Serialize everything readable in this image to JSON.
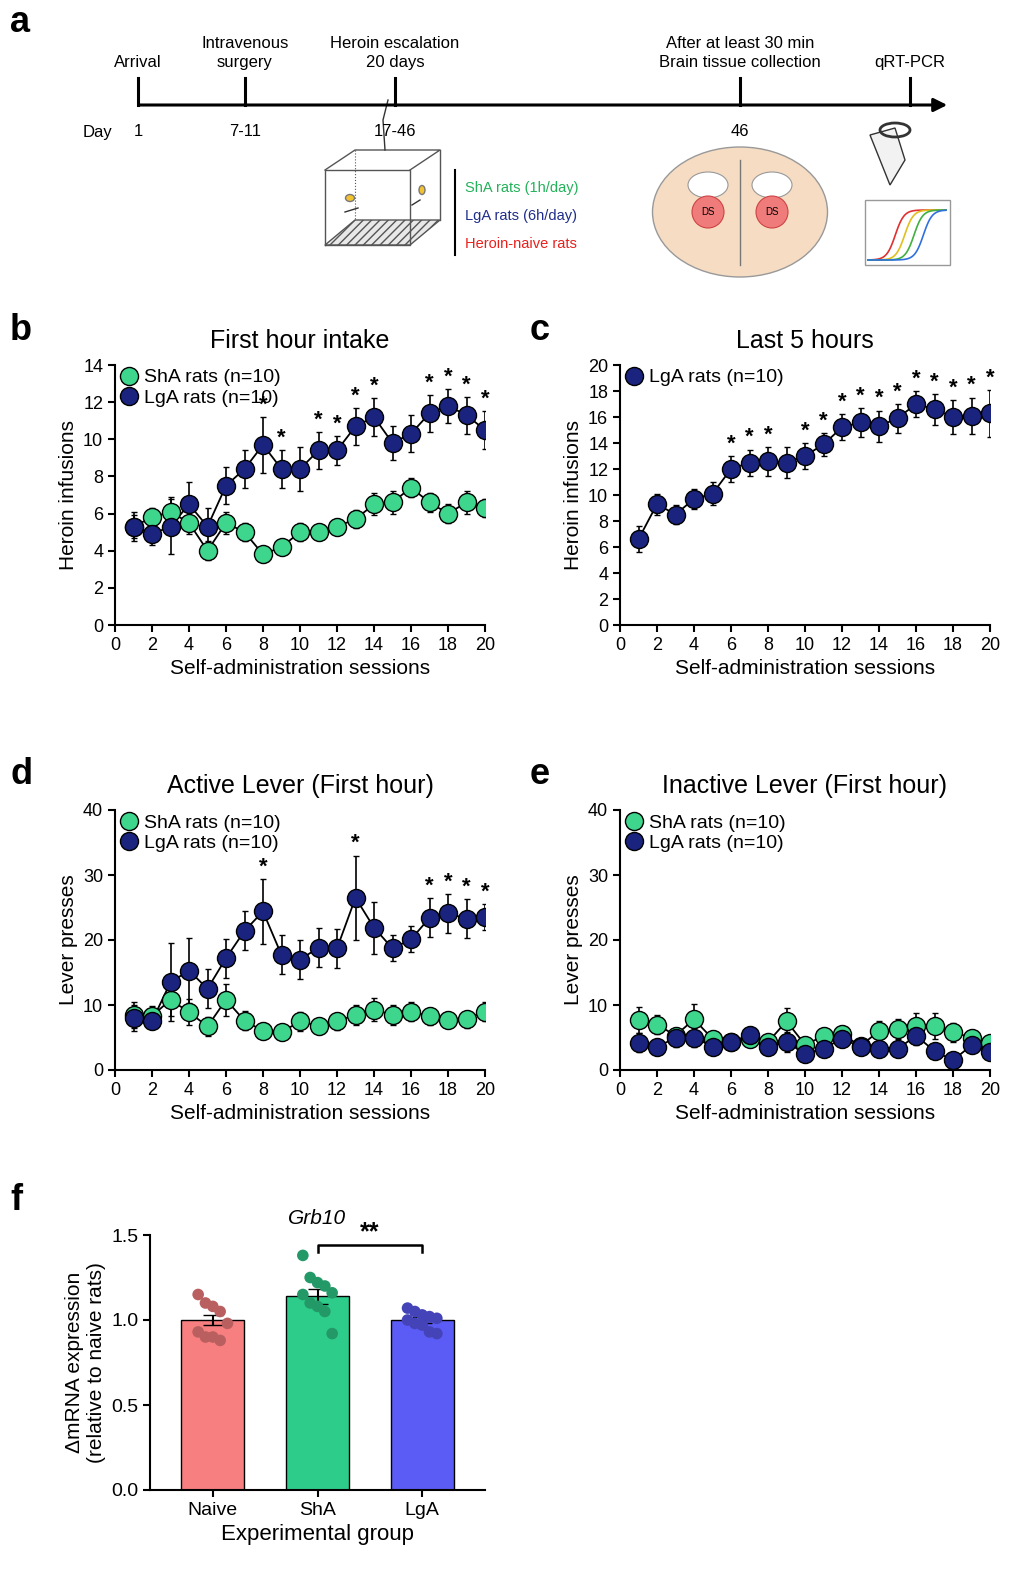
{
  "timeline": {
    "panel_label": "a",
    "day_label": "Day",
    "events": [
      {
        "label": "Arrival",
        "day": "1"
      },
      {
        "label": "Intravenous\nsurgery",
        "day": "7-11"
      },
      {
        "label": "Heroin escalation\n20 days",
        "day": "17-46"
      },
      {
        "label": "After at least 30 min\nBrain tissue collection",
        "day": "46"
      },
      {
        "label": "qRT-PCR"
      }
    ],
    "groups": [
      {
        "name": "ShA rats (1h/day)",
        "color": "#22b25a"
      },
      {
        "name": "LgA rats (6h/day)",
        "color": "#1f2d8a"
      },
      {
        "name": "Heroin-naive rats",
        "color": "#e8201c"
      }
    ],
    "region_label": "DS"
  },
  "chart_data": [
    {
      "type": "line",
      "panel_label": "b",
      "title": "First hour intake",
      "x_label": "Self-administration sessions",
      "y_label": "Heroin infusions",
      "x": [
        1,
        2,
        3,
        4,
        5,
        6,
        7,
        8,
        9,
        10,
        11,
        12,
        13,
        14,
        15,
        16,
        17,
        18,
        19,
        20
      ],
      "xlim": [
        0,
        20
      ],
      "xticks": [
        0,
        2,
        4,
        6,
        8,
        10,
        12,
        14,
        16,
        18,
        20
      ],
      "ylim": [
        0,
        14
      ],
      "yticks": [
        0,
        2,
        4,
        6,
        8,
        10,
        12,
        14
      ],
      "legend": "upper left",
      "marker": "o",
      "line_style": "solid",
      "series": [
        {
          "name": "ShA rats (n=10)",
          "color": "#3dd68c",
          "values": [
            5.3,
            5.8,
            6.1,
            5.5,
            4.0,
            5.5,
            5.0,
            3.8,
            4.2,
            5.0,
            5.0,
            5.3,
            5.7,
            6.5,
            6.6,
            7.4,
            6.6,
            6.0,
            6.6,
            6.3
          ],
          "errors": [
            0.6,
            0.5,
            0.8,
            0.6,
            0.5,
            0.6,
            0.5,
            0.4,
            0.4,
            0.5,
            0.4,
            0.4,
            0.5,
            0.6,
            0.6,
            0.5,
            0.5,
            0.5,
            0.6,
            0.5
          ]
        },
        {
          "name": "LgA rats (n=10)",
          "color": "#1a237e",
          "values": [
            5.3,
            4.9,
            5.3,
            6.5,
            5.3,
            7.5,
            8.4,
            9.7,
            8.4,
            8.4,
            9.4,
            9.4,
            10.7,
            11.2,
            9.8,
            10.3,
            11.4,
            11.8,
            11.3,
            10.5
          ],
          "errors": [
            0.8,
            0.6,
            1.5,
            1.2,
            1.0,
            1.0,
            1.0,
            1.5,
            1.0,
            1.2,
            1.0,
            0.8,
            1.0,
            1.0,
            0.9,
            1.0,
            1.0,
            0.9,
            1.0,
            1.0
          ],
          "annotations": [
            {
              "x": 8,
              "text": "*"
            },
            {
              "x": 9,
              "text": "*"
            },
            {
              "x": 11,
              "text": "*"
            },
            {
              "x": 12,
              "text": "*"
            },
            {
              "x": 13,
              "text": "*"
            },
            {
              "x": 14,
              "text": "*"
            },
            {
              "x": 17,
              "text": "*"
            },
            {
              "x": 18,
              "text": "*"
            },
            {
              "x": 19,
              "text": "*"
            },
            {
              "x": 20,
              "text": "*"
            }
          ]
        }
      ]
    },
    {
      "type": "line",
      "panel_label": "c",
      "title": "Last 5 hours",
      "x_label": "Self-administration sessions",
      "y_label": "Heroin infusions",
      "x": [
        1,
        2,
        3,
        4,
        5,
        6,
        7,
        8,
        9,
        10,
        11,
        12,
        13,
        14,
        15,
        16,
        17,
        18,
        19,
        20
      ],
      "xlim": [
        0,
        20
      ],
      "xticks": [
        0,
        2,
        4,
        6,
        8,
        10,
        12,
        14,
        16,
        18,
        20
      ],
      "ylim": [
        0,
        20
      ],
      "yticks": [
        0,
        2,
        4,
        6,
        8,
        10,
        12,
        14,
        16,
        18,
        20
      ],
      "legend": "upper left",
      "marker": "o",
      "line_style": "solid",
      "series": [
        {
          "name": "LgA rats (n=10)",
          "color": "#1a237e",
          "values": [
            6.6,
            9.3,
            8.5,
            9.7,
            10.1,
            12.0,
            12.5,
            12.6,
            12.5,
            13.0,
            13.9,
            15.2,
            15.6,
            15.3,
            15.9,
            17.0,
            16.6,
            16.0,
            16.1,
            16.3
          ],
          "errors": [
            1.0,
            0.8,
            0.7,
            0.8,
            0.9,
            1.0,
            1.0,
            1.1,
            1.2,
            1.0,
            0.9,
            1.0,
            1.1,
            1.2,
            1.1,
            1.0,
            1.2,
            1.3,
            1.4,
            1.8
          ],
          "annotations": [
            {
              "x": 6,
              "text": "*"
            },
            {
              "x": 7,
              "text": "*"
            },
            {
              "x": 8,
              "text": "*"
            },
            {
              "x": 10,
              "text": "*"
            },
            {
              "x": 11,
              "text": "*"
            },
            {
              "x": 12,
              "text": "*"
            },
            {
              "x": 13,
              "text": "*"
            },
            {
              "x": 14,
              "text": "*"
            },
            {
              "x": 15,
              "text": "*"
            },
            {
              "x": 16,
              "text": "*"
            },
            {
              "x": 17,
              "text": "*"
            },
            {
              "x": 18,
              "text": "*"
            },
            {
              "x": 19,
              "text": "*"
            },
            {
              "x": 20,
              "text": "*"
            }
          ]
        }
      ]
    },
    {
      "type": "line",
      "panel_label": "d",
      "title": "Active Lever (First hour)",
      "x_label": "Self-administration sessions",
      "y_label": "Lever presses",
      "x": [
        1,
        2,
        3,
        4,
        5,
        6,
        7,
        8,
        9,
        10,
        11,
        12,
        13,
        14,
        15,
        16,
        17,
        18,
        19,
        20
      ],
      "xlim": [
        0,
        20
      ],
      "xticks": [
        0,
        2,
        4,
        6,
        8,
        10,
        12,
        14,
        16,
        18,
        20
      ],
      "ylim": [
        0,
        40
      ],
      "yticks": [
        0,
        10,
        20,
        30,
        40
      ],
      "legend": "upper left",
      "marker": "o",
      "line_style": "solid",
      "series": [
        {
          "name": "ShA rats (n=10)",
          "color": "#3dd68c",
          "values": [
            8.5,
            8.3,
            10.8,
            8.9,
            6.7,
            10.8,
            7.6,
            6.0,
            5.8,
            7.5,
            6.8,
            7.5,
            8.5,
            9.3,
            8.5,
            9.0,
            8.3,
            7.7,
            7.8,
            9.0
          ],
          "errors": [
            2.0,
            1.5,
            2.5,
            2.0,
            1.5,
            2.5,
            1.5,
            1.2,
            1.2,
            1.5,
            1.2,
            1.3,
            1.5,
            1.8,
            1.5,
            1.5,
            1.3,
            1.3,
            1.3,
            1.5
          ]
        },
        {
          "name": "LgA rats (n=10)",
          "color": "#1a237e",
          "values": [
            8.0,
            7.5,
            13.5,
            15.3,
            12.5,
            17.2,
            21.4,
            24.4,
            17.7,
            17.0,
            18.8,
            18.7,
            26.5,
            21.9,
            18.7,
            20.1,
            23.4,
            24.1,
            23.3,
            23.6
          ],
          "errors": [
            2.0,
            1.0,
            6.0,
            5.0,
            3.0,
            3.0,
            3.0,
            5.0,
            3.0,
            3.0,
            3.0,
            3.0,
            6.5,
            4.0,
            2.0,
            2.0,
            3.0,
            3.0,
            3.0,
            2.0
          ],
          "annotations": [
            {
              "x": 8,
              "text": "*"
            },
            {
              "x": 13,
              "text": "*"
            },
            {
              "x": 17,
              "text": "*"
            },
            {
              "x": 18,
              "text": "*"
            },
            {
              "x": 19,
              "text": "*"
            },
            {
              "x": 20,
              "text": "*"
            }
          ]
        }
      ]
    },
    {
      "type": "line",
      "panel_label": "e",
      "title": "Inactive Lever (First hour)",
      "x_label": "Self-administration sessions",
      "y_label": "Lever presses",
      "x": [
        1,
        2,
        3,
        4,
        5,
        6,
        7,
        8,
        9,
        10,
        11,
        12,
        13,
        14,
        15,
        16,
        17,
        18,
        19,
        20
      ],
      "xlim": [
        0,
        20
      ],
      "xticks": [
        0,
        2,
        4,
        6,
        8,
        10,
        12,
        14,
        16,
        18,
        20
      ],
      "ylim": [
        0,
        40
      ],
      "yticks": [
        0,
        10,
        20,
        30,
        40
      ],
      "legend": "upper left",
      "marker": "o",
      "line_style": "solid",
      "series": [
        {
          "name": "ShA rats (n=10)",
          "color": "#3dd68c",
          "values": [
            7.7,
            7.0,
            5.3,
            7.8,
            4.8,
            4.3,
            4.8,
            4.3,
            7.5,
            3.9,
            5.2,
            5.5,
            3.7,
            6.0,
            6.3,
            6.7,
            6.8,
            5.8,
            5.0,
            4.2
          ],
          "errors": [
            2.0,
            1.5,
            1.2,
            2.3,
            1.2,
            1.0,
            1.2,
            1.0,
            2.0,
            1.0,
            1.2,
            1.3,
            1.0,
            1.5,
            1.5,
            2.0,
            2.0,
            1.5,
            1.2,
            1.0
          ]
        },
        {
          "name": "LgA rats (n=10)",
          "color": "#1a237e",
          "values": [
            4.2,
            3.5,
            5.0,
            5.0,
            3.6,
            4.3,
            5.4,
            3.6,
            4.3,
            2.5,
            3.3,
            4.8,
            3.6,
            3.2,
            3.2,
            5.3,
            2.9,
            1.5,
            3.8,
            2.8
          ],
          "errors": [
            1.5,
            1.0,
            1.5,
            1.5,
            1.0,
            1.0,
            1.2,
            1.0,
            1.5,
            1.0,
            1.0,
            1.2,
            1.0,
            1.0,
            1.0,
            1.5,
            1.0,
            0.8,
            1.0,
            1.0
          ]
        }
      ]
    },
    {
      "type": "bar",
      "panel_label": "f",
      "title": "Grb10",
      "x_label": "Experimental group",
      "y_label": "ΔmRNA expression\n(relative to naive rats)",
      "categories": [
        "Naive",
        "ShA",
        "LgA"
      ],
      "values": [
        1.0,
        1.14,
        1.0
      ],
      "errors": [
        0.03,
        0.045,
        0.02
      ],
      "points": [
        [
          1.15,
          1.1,
          1.08,
          1.05,
          0.98,
          0.93,
          0.9,
          0.9,
          0.88
        ],
        [
          1.38,
          1.25,
          1.22,
          1.2,
          1.16,
          1.15,
          1.1,
          1.08,
          1.05,
          0.92
        ],
        [
          1.07,
          1.05,
          1.03,
          1.02,
          1.01,
          1.0,
          0.98,
          0.97,
          0.93,
          0.92
        ]
      ],
      "colors": [
        "#f77f7f",
        "#2ecc8a",
        "#5b5bf5"
      ],
      "ylim": [
        0,
        1.5
      ],
      "yticks": [
        {
          "value": 0,
          "label": "0.0"
        },
        0.5,
        {
          "value": 1,
          "label": "1.0"
        },
        1.5
      ],
      "annotations": [
        {
          "from": "ShA",
          "to": "LgA",
          "text": "**"
        }
      ]
    }
  ]
}
